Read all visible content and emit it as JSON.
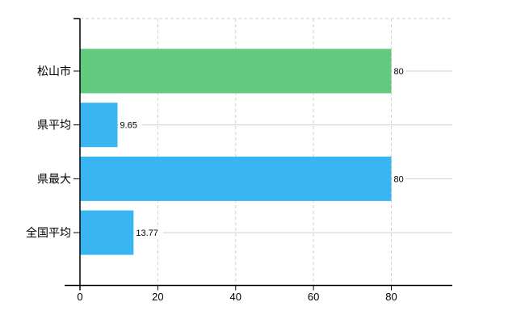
{
  "chart": {
    "background": "#ffffff",
    "axis_color": "#000000",
    "vertical_grid_color": "#d4d4d4",
    "horizontal_grid_color": "#c9d4c9",
    "top_border_color": "#cfcfcf",
    "text_color": "#000000"
  },
  "chart_data": {
    "type": "bar",
    "orientation": "horizontal",
    "title": "",
    "xlabel": "",
    "ylabel": "",
    "categories": [
      "松山市",
      "県平均",
      "県最大",
      "全国平均"
    ],
    "values": [
      80,
      9.65,
      80,
      13.77
    ],
    "value_labels": [
      "80",
      "9.65",
      "80",
      "13.77"
    ],
    "bar_colors": [
      "#62c97e",
      "#39b6f1",
      "#39b6f1",
      "#39b6f1"
    ],
    "x_ticks": [
      0,
      20,
      40,
      60,
      80
    ],
    "x_tick_labels": [
      "0",
      "20",
      "40",
      "60",
      "80"
    ],
    "xlim": [
      0,
      95.6
    ],
    "grid": "vertical gridlines dashed at x ticks; solid horizontal gridline through each category center; dashed top plot border",
    "legend": "none"
  }
}
